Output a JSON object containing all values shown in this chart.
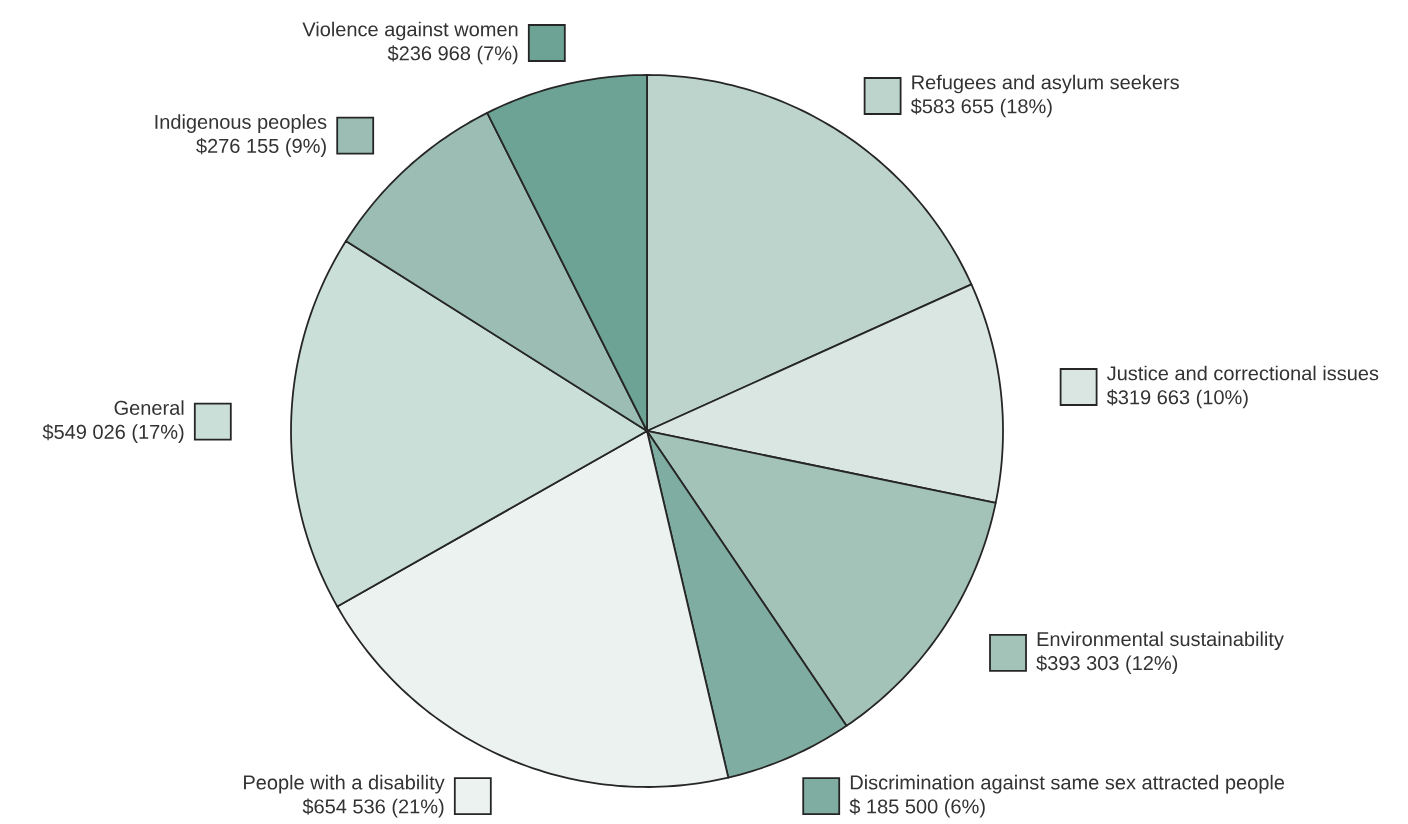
{
  "chart_data": {
    "type": "pie",
    "legend": "right",
    "categories": [
      "Refugees and asylum seekers",
      "Justice and correctional issues",
      "Environmental sustainability",
      "Discrimination against same sex attracted people",
      "People with a disability",
      "General",
      "Indigenous peoples",
      "Violence against women"
    ],
    "values": [
      583655,
      319663,
      393303,
      185500,
      654536,
      549026,
      276155,
      236968
    ],
    "value_labels": [
      "$583 655 (18%)",
      "$319 663 (10%)",
      "$393 303 (12%)",
      "$ 185 500 (6%)",
      "$654 536 (21%)",
      "$549 026 (17%)",
      "$276 155 (9%)",
      "$236 968 (7%)"
    ],
    "colors": [
      "#bdd4cd",
      "#d9e6e1",
      "#a3c3b9",
      "#80ada1",
      "#ebf2ef",
      "#cadfd8",
      "#9bbdb3",
      "#6da394"
    ]
  }
}
